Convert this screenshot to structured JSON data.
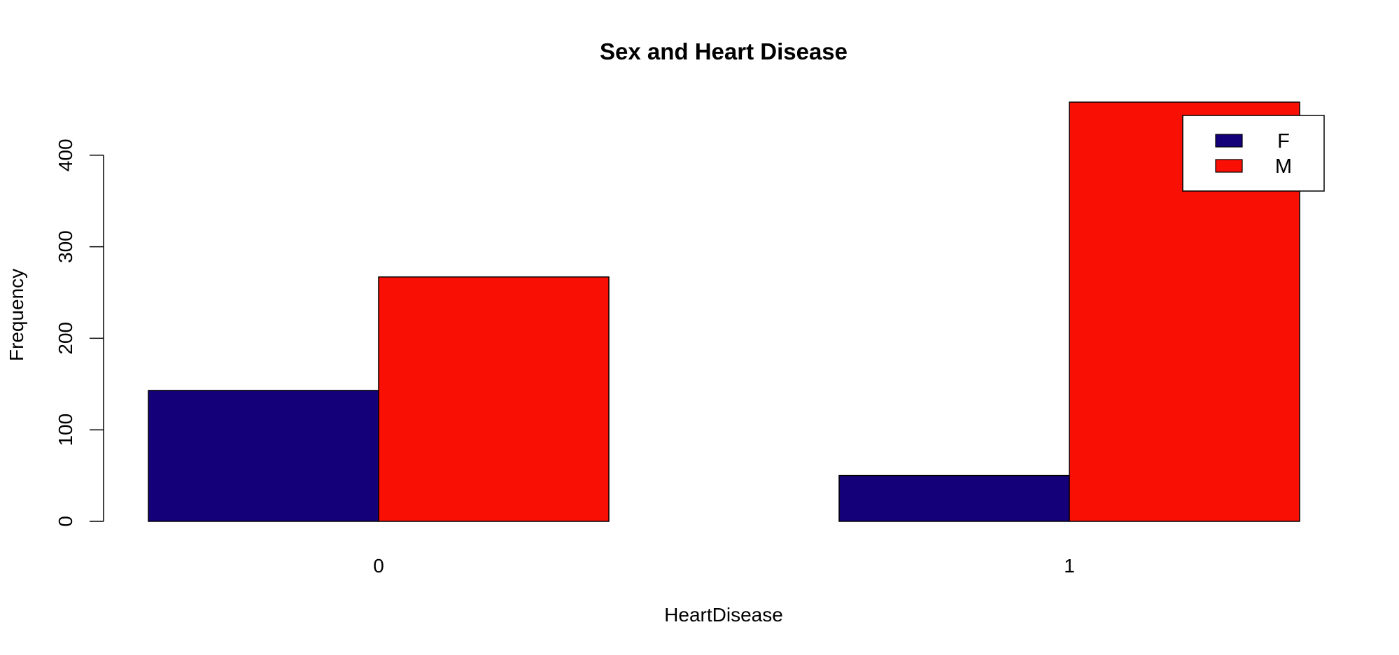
{
  "chart_data": {
    "type": "bar",
    "title": "Sex and Heart Disease",
    "xlabel": "HeartDisease",
    "ylabel": "Frequency",
    "categories": [
      "0",
      "1"
    ],
    "series": [
      {
        "name": "F",
        "color": "#140078",
        "values": [
          143,
          50
        ]
      },
      {
        "name": "M",
        "color": "#f90f04",
        "values": [
          267,
          458
        ]
      }
    ],
    "ylim": [
      0,
      460
    ],
    "yticks": [
      0,
      100,
      200,
      300,
      400
    ],
    "grid": false,
    "legend": {
      "position": "top-right",
      "entries": [
        "F",
        "M"
      ]
    }
  }
}
